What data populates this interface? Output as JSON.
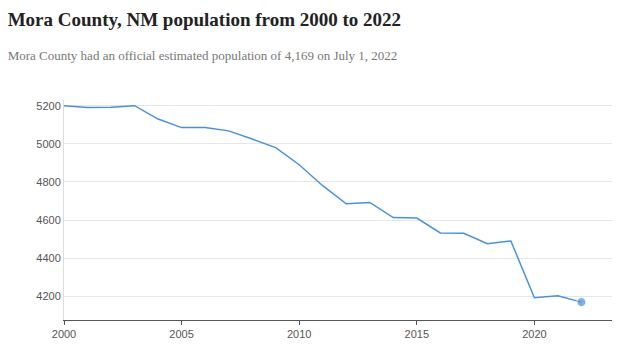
{
  "chart_data": {
    "type": "line",
    "title": "Mora County, NM population from 2000 to 2022",
    "subtitle": "Mora County had an official estimated population of 4,169 on July 1, 2022",
    "x": [
      2000,
      2001,
      2002,
      2003,
      2004,
      2005,
      2006,
      2007,
      2008,
      2009,
      2010,
      2011,
      2012,
      2013,
      2014,
      2015,
      2016,
      2017,
      2018,
      2019,
      2020,
      2021,
      2022
    ],
    "values": [
      5200,
      5190,
      5192,
      5200,
      5130,
      5085,
      5085,
      5068,
      5025,
      4980,
      4890,
      4780,
      4685,
      4692,
      4613,
      4610,
      4532,
      4530,
      4475,
      4490,
      4192,
      4202,
      4169
    ],
    "color": "#4a90d9",
    "marker": "last",
    "xlim": [
      2000,
      2023.3
    ],
    "xticks": [
      2000,
      2005,
      2010,
      2015,
      2020
    ],
    "ylim": [
      4075,
      5230
    ],
    "yticks": [
      4200,
      4400,
      4600,
      4800,
      5000,
      5200
    ],
    "grid": true
  }
}
